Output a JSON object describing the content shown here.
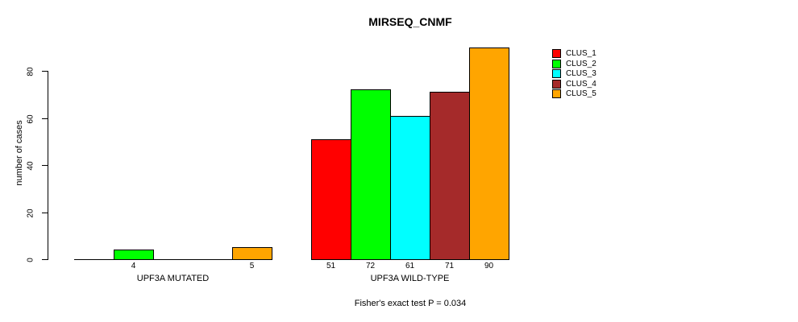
{
  "chart_data": {
    "type": "bar",
    "title": "MIRSEQ_CNMF",
    "ylabel": "number of cases",
    "xlabel": "",
    "ylim": [
      0,
      90
    ],
    "yticks": [
      0,
      20,
      40,
      60,
      80
    ],
    "grid": false,
    "legend_position": "top-right",
    "categories": [
      "UPF3A MUTATED",
      "UPF3A WILD-TYPE"
    ],
    "series": [
      {
        "name": "CLUS_1",
        "color": "#FF0000",
        "values": [
          0,
          51
        ]
      },
      {
        "name": "CLUS_2",
        "color": "#00FF00",
        "values": [
          4,
          72
        ]
      },
      {
        "name": "CLUS_3",
        "color": "#00FFFF",
        "values": [
          0,
          61
        ]
      },
      {
        "name": "CLUS_4",
        "color": "#A52A2A",
        "values": [
          0,
          71
        ]
      },
      {
        "name": "CLUS_5",
        "color": "#FFA500",
        "values": [
          5,
          90
        ]
      }
    ],
    "bar_value_labels": [
      [
        "",
        "4",
        "",
        "",
        "5"
      ],
      [
        "51",
        "72",
        "61",
        "71",
        "90"
      ]
    ],
    "annotation": "Fisher's exact test P = 0.034"
  }
}
